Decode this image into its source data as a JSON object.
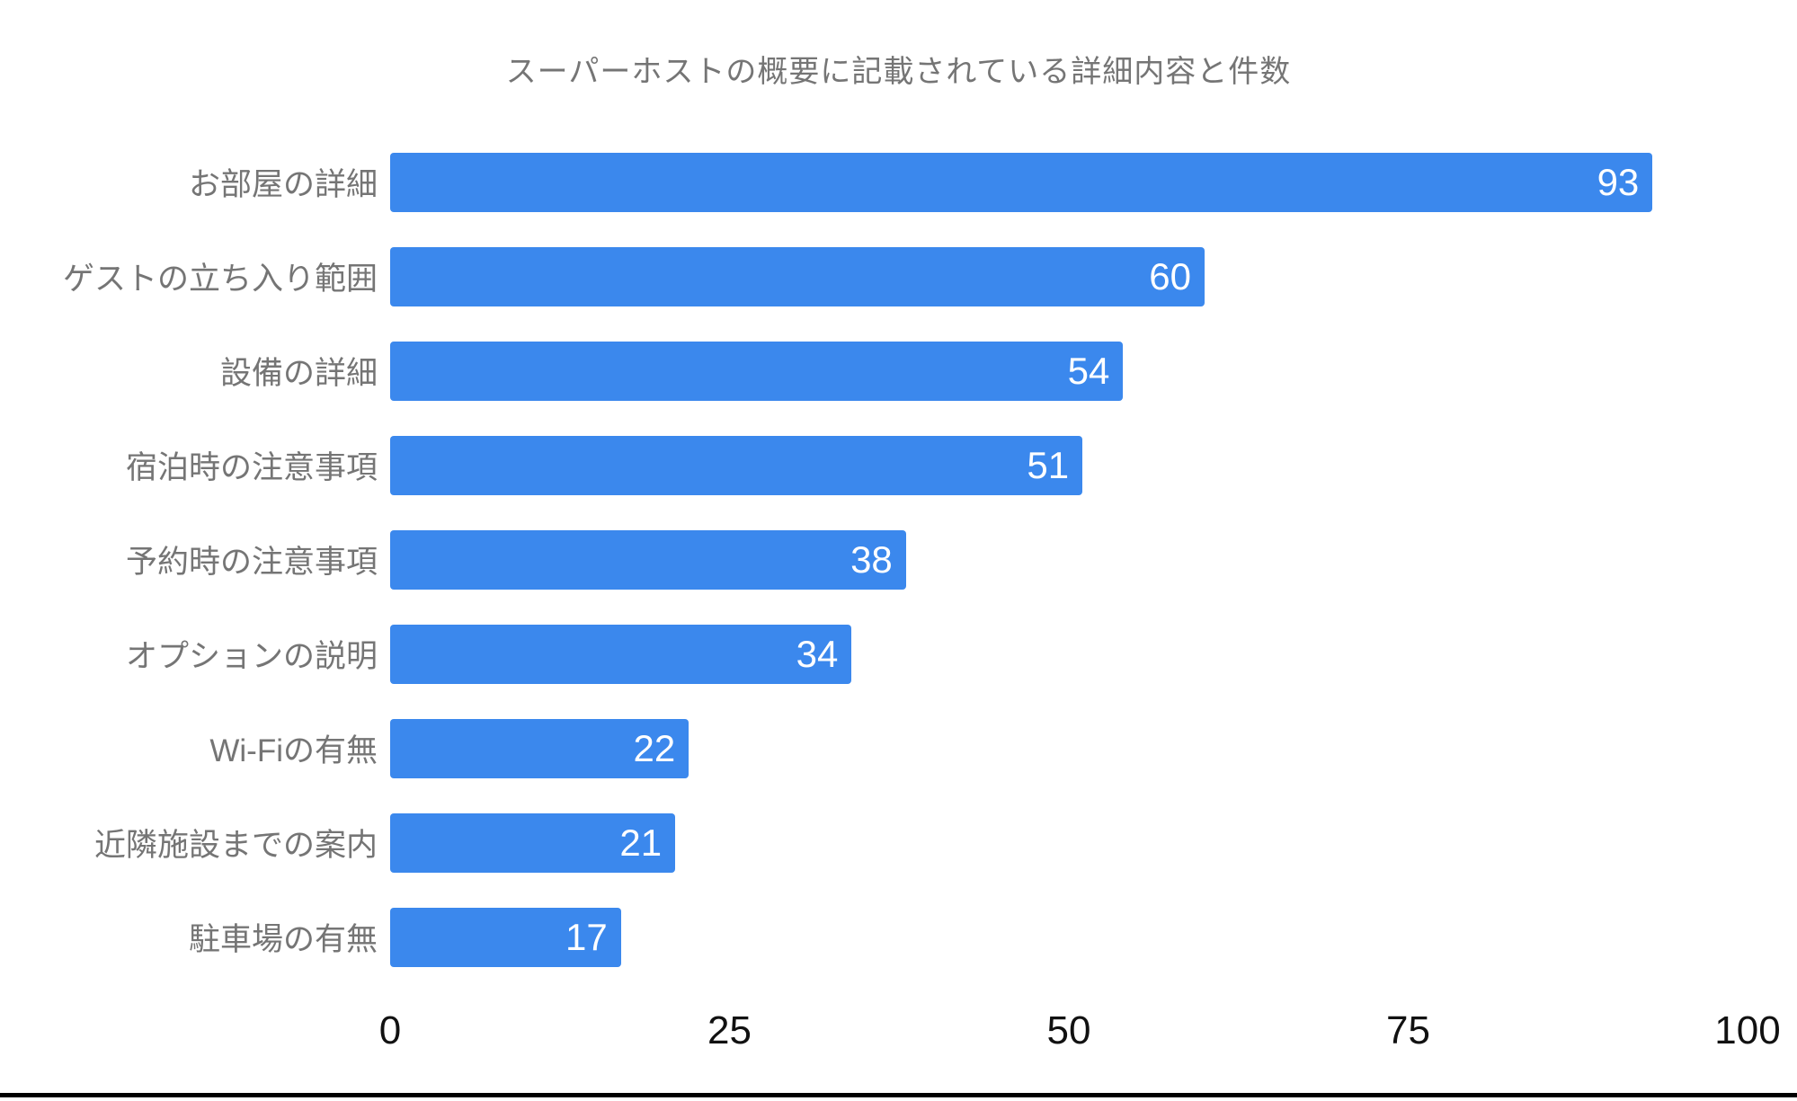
{
  "chart_data": {
    "type": "bar",
    "orientation": "horizontal",
    "title": "スーパーホストの概要に記載されている詳細内容と件数",
    "categories": [
      "お部屋の詳細",
      "ゲストの立ち入り範囲",
      "設備の詳細",
      "宿泊時の注意事項",
      "予約時の注意事項",
      "オプションの説明",
      "Wi-Fiの有無",
      "近隣施設までの案内",
      "駐車場の有無"
    ],
    "values": [
      93,
      60,
      54,
      51,
      38,
      34,
      22,
      21,
      17
    ],
    "xlabel": "",
    "ylabel": "",
    "xlim": [
      0,
      100
    ],
    "x_ticks": [
      0,
      25,
      50,
      75,
      100
    ],
    "grid": false,
    "legend": "none",
    "value_labels_position": "inside-end",
    "colors": {
      "bar": "#3b88ed",
      "value_label": "#ffffff",
      "category_label": "#757575",
      "title": "#757575",
      "tick_label": "#111111",
      "background": "#ffffff",
      "bottom_divider": "#000000"
    }
  }
}
